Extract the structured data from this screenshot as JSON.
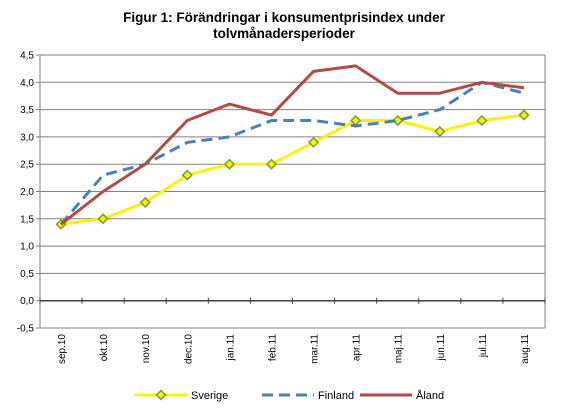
{
  "chart_data": {
    "type": "line",
    "title_lines": [
      "Figur 1: Förändringar i konsumentprisindex  under",
      "tolvmånadersperioder"
    ],
    "categories": [
      "sep.10",
      "okt.10",
      "nov.10",
      "dec.10",
      "jan.11",
      "feb.11",
      "mar.11",
      "apr.11",
      "maj.11",
      "jun.11",
      "jul.11",
      "aug.11"
    ],
    "y_ticks": [
      "4,5",
      "4,0",
      "3,5",
      "3,0",
      "2,5",
      "2,0",
      "1,5",
      "1,0",
      "0,5",
      "0,0",
      "-0,5"
    ],
    "ylim": [
      -0.5,
      4.5
    ],
    "grid": true,
    "legend_position": "bottom",
    "series": [
      {
        "name": "Sverige",
        "color": "#f5f50a",
        "marker_color": "#7a9a2a",
        "style": "solid-with-diamonds",
        "values": [
          1.4,
          1.5,
          1.8,
          2.3,
          2.5,
          2.5,
          2.9,
          3.3,
          3.3,
          3.1,
          3.3,
          3.4
        ]
      },
      {
        "name": "Finland",
        "color": "#4f7eb0",
        "style": "dashed",
        "values": [
          1.4,
          2.3,
          2.5,
          2.9,
          3.0,
          3.3,
          3.3,
          3.2,
          3.3,
          3.5,
          4.0,
          3.8
        ]
      },
      {
        "name": "Åland",
        "color": "#b44a47",
        "style": "solid",
        "values": [
          1.4,
          2.0,
          2.5,
          3.3,
          3.6,
          3.4,
          4.2,
          4.3,
          3.8,
          3.8,
          4.0,
          3.9
        ]
      }
    ]
  }
}
